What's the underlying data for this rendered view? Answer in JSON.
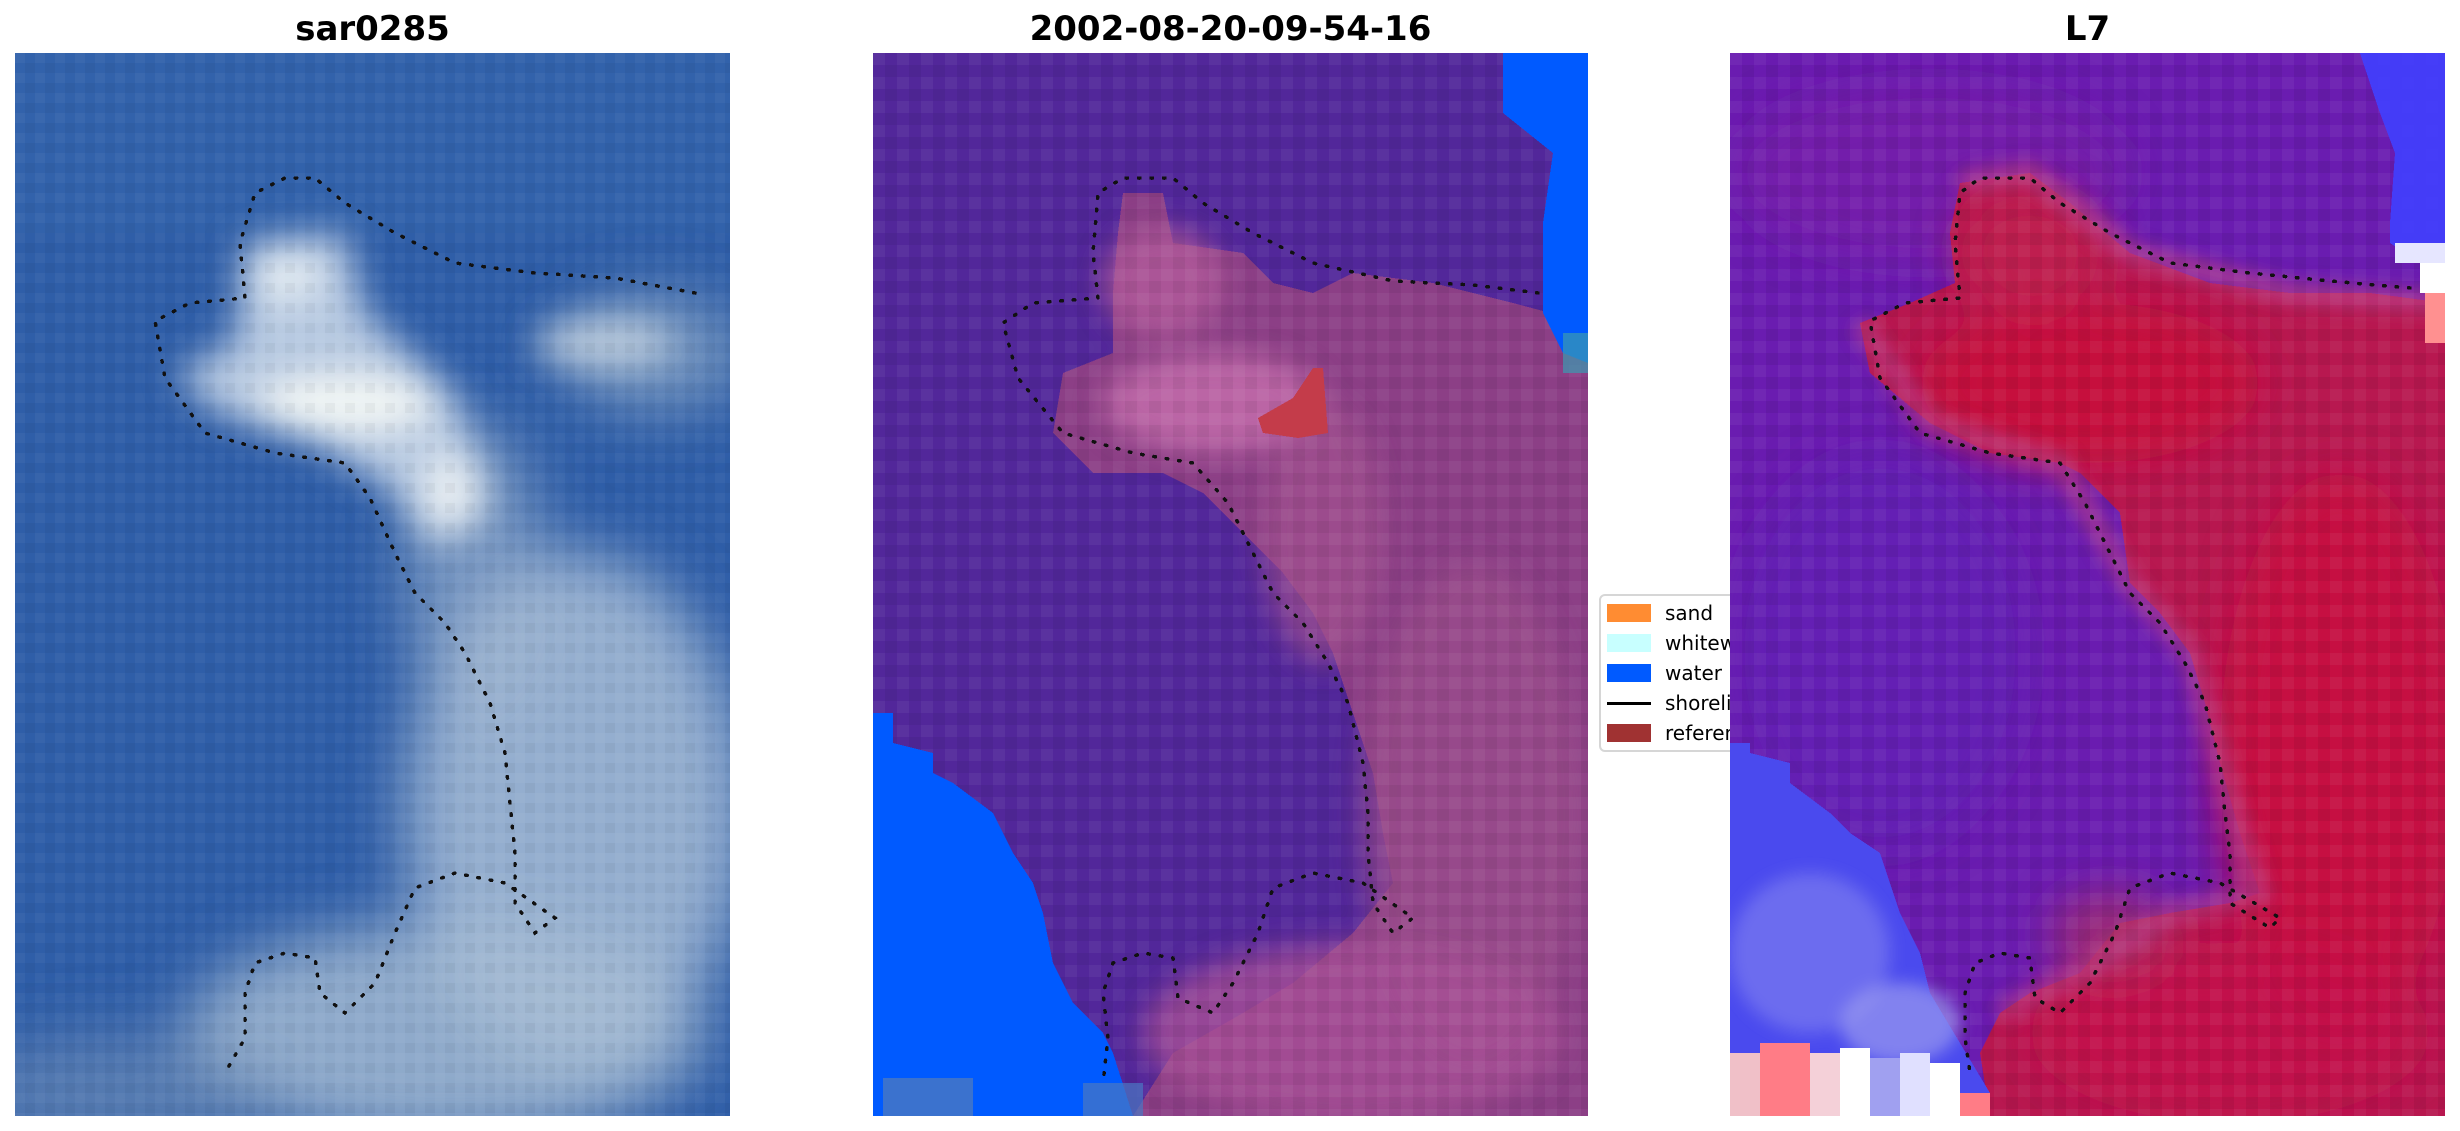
{
  "panels": [
    {
      "title": "sar0285"
    },
    {
      "title": "2002-08-20-09-54-16"
    },
    {
      "title": "L7"
    }
  ],
  "legend": {
    "items": [
      {
        "label": "sand",
        "color": "#ff8c32",
        "kind": "patch"
      },
      {
        "label": "whitewater",
        "color": "#c8ffff",
        "kind": "patch"
      },
      {
        "label": "water",
        "color": "#005aff",
        "kind": "patch"
      },
      {
        "label": "shoreline",
        "color": "#000000",
        "kind": "line"
      },
      {
        "label": "reference",
        "color": "#a03232",
        "kind": "patch"
      }
    ]
  },
  "colors": {
    "sea_rgb": "#2f5ea8",
    "cloud_rgb": "#dbe6ee",
    "class_background": "#52279a",
    "class_land": "#9a4c8c",
    "class_water": "#005aff",
    "index_low": "#6a1cb0",
    "index_high": "#c8103a",
    "index_blue": "#5050f0"
  }
}
